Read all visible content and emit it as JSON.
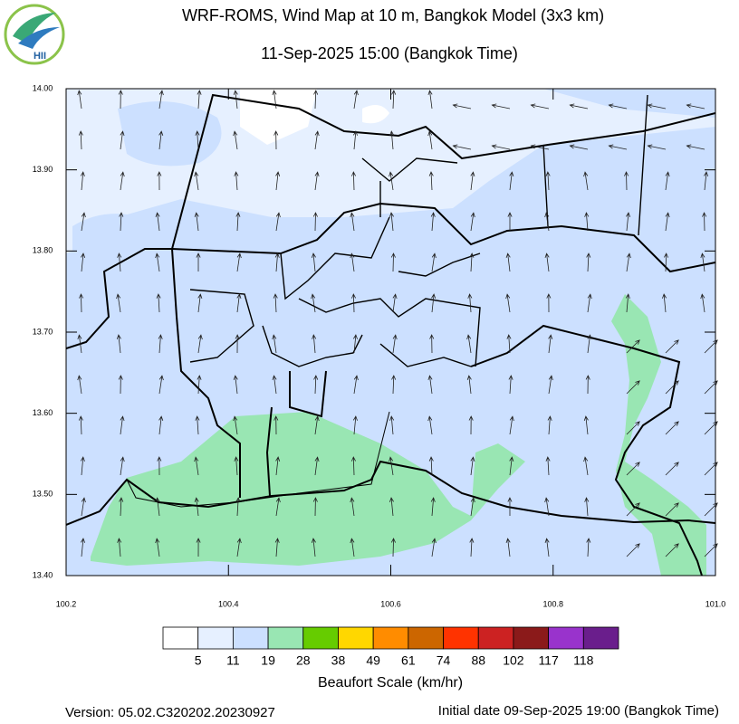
{
  "header": {
    "title": "WRF-ROMS, Wind Map at 10 m, Bangkok Model (3x3 km)",
    "subtitle": "11-Sep-2025 15:00 (Bangkok Time)",
    "logo": "HII"
  },
  "map": {
    "xlim": [
      100.2,
      101.0
    ],
    "ylim": [
      13.4,
      14.0
    ],
    "xticks": [
      100.2,
      100.4,
      100.6,
      100.8,
      {
        "value": 101.0,
        "label": "101.0"
      }
    ],
    "yticks": [
      {
        "value": 13.4,
        "label": "13.40"
      },
      {
        "value": 13.5,
        "label": "13.50"
      },
      {
        "value": 13.6,
        "label": "13.60"
      },
      {
        "value": 13.7,
        "label": "13.70"
      },
      {
        "value": 13.8,
        "label": "13.80"
      },
      {
        "value": 13.9,
        "label": "13.90"
      },
      {
        "value": 14.0,
        "label": "14.00"
      }
    ]
  },
  "legend": {
    "title": "Beaufort Scale (km/hr)",
    "colors": [
      "#ffffff",
      "#e6f0ff",
      "#cce0ff",
      "#99e6b3",
      "#66cc00",
      "#ffd700",
      "#ff8c00",
      "#cc6600",
      "#ff3300",
      "#cc2222",
      "#8b1a1a",
      "#9933cc",
      "#6a1e8c"
    ],
    "levels": [
      5,
      11,
      19,
      28,
      38,
      49,
      61,
      74,
      88,
      102,
      117,
      118
    ]
  },
  "footer": {
    "version": "Version: 05.02.C320202.20230927",
    "initial": "Initial date 09-Sep-2025 19:00 (Bangkok Time)"
  }
}
